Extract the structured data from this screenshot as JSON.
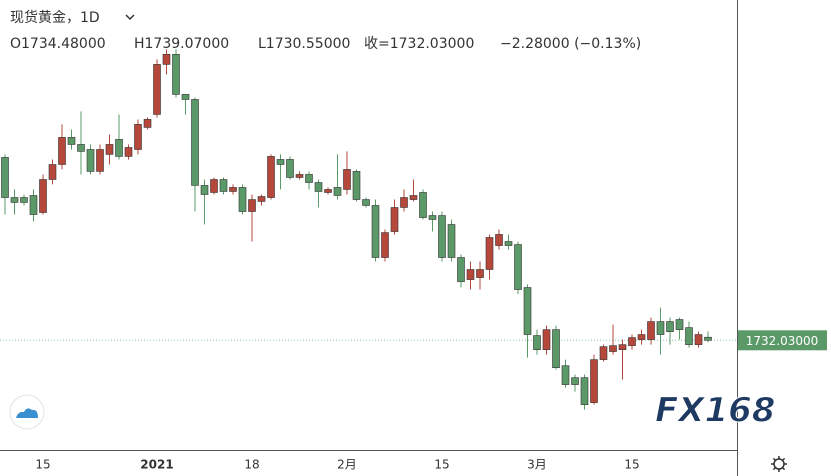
{
  "chart_data": {
    "type": "candlestick",
    "header": {
      "title": "现货黄金，1D",
      "stats": [
        "O1734.48000",
        "H1739.07000",
        "L1730.55000",
        "收=1732.03000",
        "−2.28000 (−0.13%)"
      ]
    },
    "watermark": "FX168",
    "up_color": "#b5483b",
    "down_color": "#5b9a68",
    "ylim": [
      1645,
      2002
    ],
    "last_price": {
      "value": 1732.03,
      "label": "1732.03000"
    },
    "categories": [
      null,
      null,
      null,
      null,
      "15",
      null,
      null,
      null,
      null,
      null,
      null,
      null,
      null,
      null,
      null,
      null,
      "2021",
      null,
      null,
      null,
      null,
      null,
      null,
      null,
      null,
      null,
      "18",
      null,
      null,
      null,
      null,
      null,
      null,
      null,
      null,
      null,
      "2月",
      null,
      null,
      null,
      null,
      null,
      null,
      null,
      null,
      null,
      "15",
      null,
      null,
      null,
      null,
      null,
      null,
      null,
      null,
      null,
      "3月",
      null,
      null,
      null,
      null,
      null,
      null,
      null,
      null,
      null,
      "15",
      null,
      null,
      null,
      null,
      null,
      null,
      null,
      null
    ],
    "open": [
      1877.1,
      1845.3,
      1845.3,
      1846.9,
      1833.4,
      1859.6,
      1871.5,
      1893.0,
      1887.4,
      1883.4,
      1866.0,
      1879.5,
      1891.4,
      1877.9,
      1883.4,
      1900.9,
      1911.2,
      1950.9,
      1958.9,
      1927.1,
      1923.1,
      1854.9,
      1849.3,
      1859.6,
      1850.1,
      1853.3,
      1834.2,
      1842.2,
      1845.3,
      1875.5,
      1875.5,
      1861.2,
      1863.6,
      1857.2,
      1849.3,
      1853.3,
      1851.7,
      1866.0,
      1843.7,
      1839.0,
      1797.7,
      1818.3,
      1837.4,
      1843.7,
      1849.3,
      1831.0,
      1831.0,
      1823.9,
      1797.7,
      1780.2,
      1781.8,
      1788.2,
      1807.2,
      1810.4,
      1808.0,
      1773.9,
      1735.8,
      1724.6,
      1740.5,
      1711.9,
      1702.4,
      1702.4,
      1682.6,
      1716.7,
      1723.1,
      1724.6,
      1727.8,
      1732.6,
      1732.6,
      1746.9,
      1746.9,
      1748.5,
      1742.1,
      1728.6,
      1734.48
    ],
    "high": [
      1879.5,
      1851.7,
      1847.7,
      1851.7,
      1863.6,
      1875.5,
      1903.3,
      1899.3,
      1913.6,
      1887.4,
      1887.4,
      1895.3,
      1911.2,
      1887.4,
      1907.3,
      1908.8,
      1954.9,
      1962.8,
      1962.8,
      1927.1,
      1924.7,
      1859.6,
      1861.2,
      1861.2,
      1855.7,
      1855.7,
      1847.7,
      1847.7,
      1879.5,
      1879.5,
      1877.9,
      1866.0,
      1866.0,
      1859.6,
      1853.3,
      1879.5,
      1881.9,
      1867.6,
      1845.3,
      1843.7,
      1819.9,
      1843.7,
      1851.7,
      1859.6,
      1851.7,
      1834.2,
      1834.2,
      1827.9,
      1800.1,
      1794.5,
      1794.5,
      1816.0,
      1819.9,
      1816.0,
      1810.4,
      1776.3,
      1740.5,
      1743.7,
      1743.7,
      1716.7,
      1704.8,
      1704.8,
      1720.7,
      1728.6,
      1744.5,
      1732.6,
      1736.6,
      1740.5,
      1750.0,
      1758.0,
      1750.0,
      1750.0,
      1746.9,
      1738.9,
      1739.07
    ],
    "low": [
      1831.8,
      1831.8,
      1839.0,
      1826.3,
      1831.8,
      1855.7,
      1867.6,
      1883.4,
      1863.6,
      1863.6,
      1863.6,
      1871.5,
      1875.5,
      1875.5,
      1879.5,
      1899.3,
      1908.8,
      1943.0,
      1924.7,
      1911.2,
      1834.2,
      1823.9,
      1847.7,
      1847.7,
      1847.7,
      1831.8,
      1810.4,
      1839.0,
      1843.7,
      1851.7,
      1859.6,
      1859.6,
      1851.7,
      1837.4,
      1847.7,
      1843.7,
      1847.7,
      1842.2,
      1837.4,
      1794.5,
      1794.5,
      1816.0,
      1834.2,
      1842.2,
      1827.9,
      1818.3,
      1794.5,
      1794.5,
      1773.9,
      1772.3,
      1772.3,
      1780.2,
      1804.0,
      1804.0,
      1768.7,
      1718.3,
      1720.7,
      1720.7,
      1708.8,
      1694.5,
      1691.3,
      1677.0,
      1681.0,
      1715.1,
      1720.7,
      1700.8,
      1724.6,
      1728.6,
      1728.6,
      1720.7,
      1728.6,
      1732.6,
      1726.2,
      1726.2,
      1730.55
    ],
    "close": [
      1845.3,
      1841.4,
      1841.4,
      1831.8,
      1859.6,
      1871.5,
      1893.0,
      1887.4,
      1881.9,
      1866.0,
      1883.4,
      1887.4,
      1877.9,
      1885.0,
      1903.3,
      1907.3,
      1950.9,
      1958.9,
      1927.1,
      1923.1,
      1854.9,
      1847.7,
      1859.6,
      1850.1,
      1853.3,
      1834.2,
      1843.7,
      1846.1,
      1877.9,
      1871.5,
      1861.2,
      1863.6,
      1857.2,
      1850.1,
      1851.7,
      1846.9,
      1867.6,
      1843.7,
      1839.0,
      1797.7,
      1817.5,
      1837.4,
      1845.3,
      1846.9,
      1829.4,
      1827.9,
      1797.7,
      1797.7,
      1778.6,
      1788.2,
      1788.2,
      1813.6,
      1816.0,
      1807.2,
      1772.3,
      1736.6,
      1724.6,
      1740.5,
      1710.3,
      1696.9,
      1696.9,
      1681.0,
      1716.7,
      1727.0,
      1727.8,
      1728.6,
      1734.2,
      1736.6,
      1746.9,
      1736.6,
      1738.9,
      1740.5,
      1728.6,
      1736.6,
      1732.03
    ]
  }
}
